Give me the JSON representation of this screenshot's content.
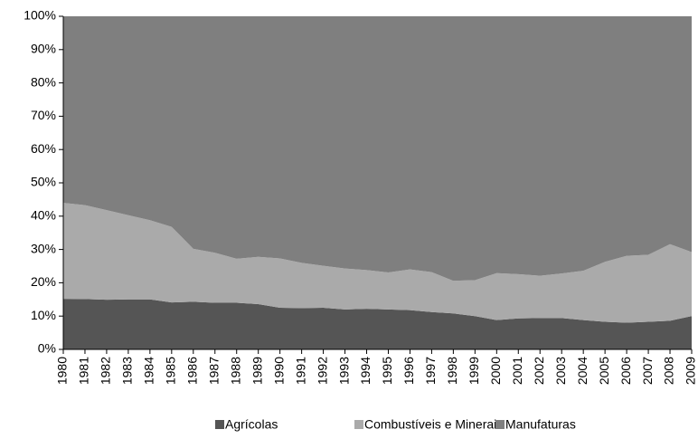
{
  "chart_data": {
    "type": "stacked_area",
    "categories": [
      "1980",
      "1981",
      "1982",
      "1983",
      "1984",
      "1985",
      "1986",
      "1987",
      "1988",
      "1989",
      "1990",
      "1991",
      "1992",
      "1993",
      "1994",
      "1995",
      "1996",
      "1997",
      "1998",
      "1999",
      "2000",
      "2001",
      "2002",
      "2003",
      "2004",
      "2005",
      "2006",
      "2007",
      "2008",
      "2009"
    ],
    "series": [
      {
        "name": "Agrícolas",
        "color": "#555555",
        "values": [
          15.2,
          15.1,
          14.9,
          15.0,
          15.0,
          14.1,
          14.3,
          14.0,
          14.0,
          13.6,
          12.5,
          12.4,
          12.5,
          12.0,
          12.2,
          12.0,
          11.8,
          11.2,
          10.8,
          10.0,
          8.8,
          9.3,
          9.4,
          9.4,
          8.8,
          8.3,
          8.0,
          8.3,
          8.6,
          10.0
        ]
      },
      {
        "name": "Combustíveis e Minerais",
        "color": "#aaaaaa",
        "values": [
          28.8,
          28.2,
          26.9,
          25.3,
          23.8,
          22.7,
          15.9,
          15.0,
          13.2,
          14.2,
          14.8,
          13.6,
          12.6,
          12.3,
          11.6,
          11.1,
          12.2,
          12.0,
          9.8,
          10.8,
          14.1,
          13.3,
          12.7,
          13.4,
          14.8,
          18.0,
          20.1,
          20.1,
          23.0,
          19.2
        ]
      },
      {
        "name": "Manufaturas",
        "color": "#7f7f7f",
        "values": [
          56.0,
          56.7,
          58.2,
          59.7,
          61.2,
          63.2,
          69.8,
          71.0,
          72.8,
          72.2,
          72.7,
          74.0,
          74.9,
          75.7,
          76.2,
          76.9,
          76.0,
          76.8,
          79.4,
          79.2,
          77.1,
          77.4,
          77.9,
          77.2,
          76.4,
          73.7,
          71.9,
          71.6,
          68.4,
          70.8
        ]
      }
    ],
    "ylim": [
      0,
      100
    ],
    "yticks": [
      {
        "value": 0,
        "label": "0%"
      },
      {
        "value": 10,
        "label": "10%"
      },
      {
        "value": 20,
        "label": "20%"
      },
      {
        "value": 30,
        "label": "30%"
      },
      {
        "value": 40,
        "label": "40%"
      },
      {
        "value": 50,
        "label": "50%"
      },
      {
        "value": 60,
        "label": "60%"
      },
      {
        "value": 70,
        "label": "70%"
      },
      {
        "value": 80,
        "label": "80%"
      },
      {
        "value": 90,
        "label": "90%"
      },
      {
        "value": 100,
        "label": "100%"
      }
    ],
    "legend": "bottom"
  }
}
